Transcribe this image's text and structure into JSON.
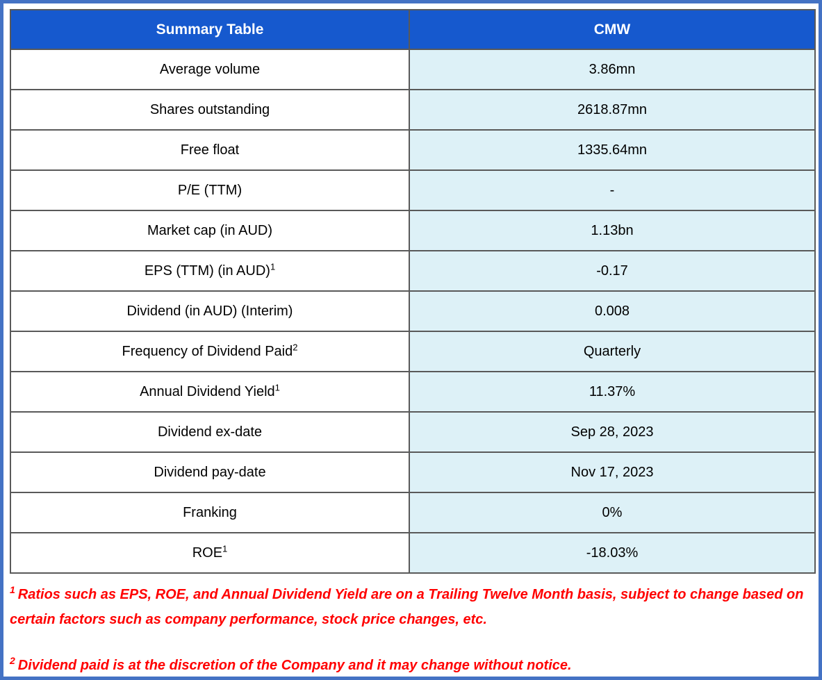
{
  "table": {
    "header": {
      "col1": "Summary Table",
      "col2": "CMW"
    },
    "rows": [
      {
        "label": "Average volume",
        "sup": "",
        "value": "3.86mn"
      },
      {
        "label": "Shares outstanding",
        "sup": "",
        "value": "2618.87mn"
      },
      {
        "label": "Free float",
        "sup": "",
        "value": "1335.64mn"
      },
      {
        "label": "P/E (TTM)",
        "sup": "",
        "value": "-"
      },
      {
        "label": "Market cap (in AUD)",
        "sup": "",
        "value": "1.13bn"
      },
      {
        "label": "EPS (TTM) (in AUD)",
        "sup": "1",
        "value": "-0.17"
      },
      {
        "label": "Dividend (in AUD) (Interim)",
        "sup": "",
        "value": "0.008"
      },
      {
        "label": "Frequency of Dividend Paid",
        "sup": "2",
        "value": "Quarterly"
      },
      {
        "label": "Annual Dividend Yield",
        "sup": "1",
        "value": "11.37%"
      },
      {
        "label": "Dividend ex-date",
        "sup": "",
        "value": "Sep 28, 2023"
      },
      {
        "label": "Dividend pay-date",
        "sup": "",
        "value": "Nov 17, 2023"
      },
      {
        "label": "Franking",
        "sup": "",
        "value": "0%"
      },
      {
        "label": "ROE",
        "sup": "1",
        "value": "-18.03%"
      }
    ]
  },
  "footnotes": [
    {
      "sup": "1",
      "text": "Ratios such as EPS, ROE, and Annual Dividend Yield are on a Trailing Twelve Month basis, subject to change based on certain factors such as company performance, stock price changes, etc."
    },
    {
      "sup": "2",
      "text": "Dividend paid is at the discretion of the Company and it may change without notice."
    }
  ],
  "colors": {
    "header_bg": "#1659CE",
    "header_text": "#ffffff",
    "value_cell_bg": "#DDF1F7",
    "cell_border": "#595959",
    "outer_frame": "#4472C4",
    "footnote_text": "#FF0000"
  }
}
